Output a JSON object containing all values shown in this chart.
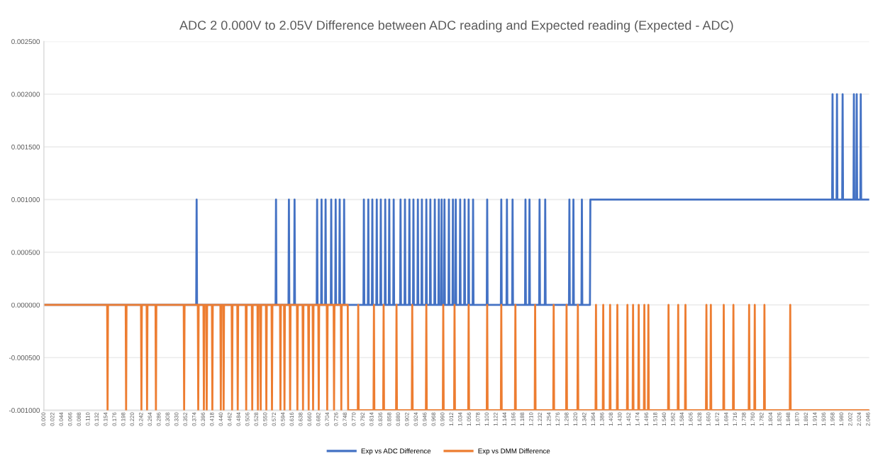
{
  "chart_data": {
    "type": "line",
    "title": "ADC 2 0.000V to 2.05V Difference between ADC reading and Expected reading (Expected - ADC)",
    "xlim": [
      0,
      2.048
    ],
    "xticks": [
      {
        "value": 0,
        "label": "0.000"
      },
      0.022,
      0.044,
      0.066,
      0.088,
      {
        "value": 0.11,
        "label": "0.110"
      },
      0.132,
      0.154,
      0.176,
      0.198,
      {
        "value": 0.22,
        "label": "0.220"
      },
      0.242,
      0.264,
      0.286,
      0.308,
      {
        "value": 0.33,
        "label": "0.330"
      },
      0.352,
      0.374,
      0.396,
      0.418,
      {
        "value": 0.44,
        "label": "0.440"
      },
      0.462,
      0.484,
      0.506,
      0.528,
      {
        "value": 0.55,
        "label": "0.550"
      },
      0.572,
      0.594,
      0.616,
      0.638,
      {
        "value": 0.66,
        "label": "0.660"
      },
      0.682,
      0.704,
      0.726,
      0.748,
      {
        "value": 0.77,
        "label": "0.770"
      },
      0.792,
      0.814,
      0.836,
      0.858,
      {
        "value": 0.88,
        "label": "0.880"
      },
      0.902,
      0.924,
      0.946,
      0.968,
      {
        "value": 0.99,
        "label": "0.990"
      },
      1.012,
      1.034,
      1.056,
      1.078,
      {
        "value": 1.1,
        "label": "1.100"
      },
      1.122,
      1.144,
      1.166,
      1.188,
      {
        "value": 1.21,
        "label": "1.210"
      },
      1.232,
      1.254,
      1.276,
      1.298,
      {
        "value": 1.32,
        "label": "1.320"
      },
      1.342,
      1.364,
      1.386,
      1.408,
      {
        "value": 1.43,
        "label": "1.430"
      },
      1.452,
      1.474,
      1.496,
      1.518,
      {
        "value": 1.54,
        "label": "1.540"
      },
      1.562,
      1.584,
      1.606,
      1.628,
      {
        "value": 1.65,
        "label": "1.650"
      },
      1.672,
      1.694,
      1.716,
      1.738,
      {
        "value": 1.76,
        "label": "1.760"
      },
      1.782,
      1.804,
      1.826,
      1.848,
      {
        "value": 1.87,
        "label": "1.870"
      },
      1.892,
      1.914,
      1.936,
      1.958,
      {
        "value": 1.98,
        "label": "1.980"
      },
      2.002,
      2.024,
      2.046
    ],
    "ylim": [
      -0.001,
      0.0025
    ],
    "yticks": [
      {
        "value": -0.001,
        "label": "-0.001000"
      },
      {
        "value": -0.0005,
        "label": "-0.000500"
      },
      {
        "value": 0,
        "label": "0.000000"
      },
      {
        "value": 0.0005,
        "label": "0.000500"
      },
      {
        "value": 0.001,
        "label": "0.001000"
      },
      {
        "value": 0.0015,
        "label": "0.001500"
      },
      {
        "value": 0.002,
        "label": "0.002000"
      },
      {
        "value": 0.0025,
        "label": "0.002500"
      }
    ],
    "grid": "y",
    "legend": "bottom",
    "series": [
      {
        "name": "Exp vs ADC Difference",
        "color": "#4472c4",
        "x": [
          0,
          0.378,
          0.379,
          0.38,
          0.575,
          0.576,
          0.577,
          0.607,
          0.608,
          0.609,
          0.621,
          0.622,
          0.623,
          0.677,
          0.678,
          0.679,
          0.688,
          0.689,
          0.69,
          0.698,
          0.699,
          0.7,
          0.712,
          0.713,
          0.714,
          0.723,
          0.724,
          0.725,
          0.733,
          0.734,
          0.735,
          0.744,
          0.745,
          0.746,
          0.793,
          0.794,
          0.795,
          0.804,
          0.805,
          0.806,
          0.814,
          0.815,
          0.816,
          0.825,
          0.826,
          0.827,
          0.835,
          0.836,
          0.837,
          0.846,
          0.847,
          0.848,
          0.856,
          0.857,
          0.858,
          0.867,
          0.868,
          0.869,
          0.884,
          0.885,
          0.886,
          0.895,
          0.896,
          0.897,
          0.906,
          0.907,
          0.908,
          0.916,
          0.917,
          0.918,
          0.927,
          0.928,
          0.929,
          0.937,
          0.938,
          0.939,
          0.948,
          0.949,
          0.95,
          0.958,
          0.959,
          0.96,
          0.969,
          0.97,
          0.971,
          0.979,
          0.98,
          0.981,
          0.986,
          0.987,
          0.988,
          0.993,
          0.994,
          0.995,
          1.004,
          1.005,
          1.006,
          1.014,
          1.015,
          1.016,
          1.021,
          1.022,
          1.023,
          1.032,
          1.033,
          1.034,
          1.043,
          1.044,
          1.045,
          1.053,
          1.054,
          1.055,
          1.064,
          1.065,
          1.066,
          1.099,
          1.1,
          1.101,
          1.134,
          1.135,
          1.136,
          1.148,
          1.149,
          1.15,
          1.162,
          1.163,
          1.164,
          1.194,
          1.195,
          1.196,
          1.204,
          1.205,
          1.206,
          1.229,
          1.23,
          1.231,
          1.243,
          1.244,
          1.245,
          1.303,
          1.304,
          1.305,
          1.313,
          1.314,
          1.315,
          1.334,
          1.335,
          1.336,
          1.355,
          1.356,
          1.956,
          1.957,
          1.958,
          1.967,
          1.968,
          1.969,
          1.981,
          1.982,
          1.983,
          2.009,
          2.01,
          2.011,
          2.016,
          2.017,
          2.018,
          2.026,
          2.027,
          2.028,
          2.048
        ],
        "values": [
          0,
          0,
          0.001,
          0,
          0,
          0.001,
          0,
          0,
          0.001,
          0,
          0,
          0.001,
          0,
          0,
          0.001,
          0,
          0,
          0.001,
          0,
          0,
          0.001,
          0,
          0,
          0.001,
          0,
          0,
          0.001,
          0,
          0,
          0.001,
          0,
          0,
          0.001,
          0,
          0,
          0.001,
          0,
          0,
          0.001,
          0,
          0,
          0.001,
          0,
          0,
          0.001,
          0,
          0,
          0.001,
          0,
          0,
          0.001,
          0,
          0,
          0.001,
          0,
          0,
          0.001,
          0,
          0,
          0.001,
          0,
          0,
          0.001,
          0,
          0,
          0.001,
          0,
          0,
          0.001,
          0,
          0,
          0.001,
          0,
          0,
          0.001,
          0,
          0,
          0.001,
          0,
          0,
          0.001,
          0,
          0,
          0.001,
          0,
          0,
          0.001,
          0,
          0,
          0.001,
          0,
          0,
          0.001,
          0,
          0,
          0.001,
          0,
          0,
          0.001,
          0,
          0,
          0.001,
          0,
          0,
          0.001,
          0,
          0,
          0.001,
          0,
          0,
          0.001,
          0,
          0,
          0.001,
          0,
          0,
          0.001,
          0,
          0,
          0.001,
          0,
          0,
          0.001,
          0,
          0,
          0.001,
          0,
          0,
          0.001,
          0,
          0,
          0.001,
          0,
          0,
          0.001,
          0,
          0,
          0.001,
          0,
          0,
          0.001,
          0,
          0,
          0.001,
          0,
          0,
          0.001,
          0,
          0,
          0.001,
          0.001,
          0.002,
          0.001,
          0.001,
          0.002,
          0.001,
          0.001,
          0.002,
          0.001,
          0.001,
          0.002,
          0.001,
          0.001,
          0.002,
          0.001,
          0.001,
          0.002,
          0.001,
          0.001
        ]
      },
      {
        "name": "Exp vs DMM Difference",
        "color": "#ed7d31",
        "x": [
          0,
          0.157,
          0.158,
          0.159,
          0.203,
          0.204,
          0.205,
          0.241,
          0.242,
          0.243,
          0.255,
          0.256,
          0.257,
          0.277,
          0.278,
          0.279,
          0.347,
          0.348,
          0.349,
          0.382,
          0.383,
          0.384,
          0.396,
          0.397,
          0.398,
          0.403,
          0.404,
          0.405,
          0.417,
          0.418,
          0.419,
          0.438,
          0.439,
          0.44,
          0.445,
          0.446,
          0.447,
          0.466,
          0.467,
          0.468,
          0.48,
          0.481,
          0.482,
          0.501,
          0.502,
          0.503,
          0.516,
          0.517,
          0.518,
          0.53,
          0.531,
          0.532,
          0.537,
          0.538,
          0.539,
          0.551,
          0.552,
          0.553,
          0.565,
          0.566,
          0.567,
          0.586,
          0.587,
          0.588,
          0.596,
          0.597,
          0.598,
          0.61,
          0.611,
          0.612,
          0.628,
          0.629,
          0.63,
          0.642,
          0.643,
          0.644,
          0.656,
          0.657,
          0.658,
          0.667,
          0.668,
          0.669,
          0.681,
          0.682,
          0.683,
          0.702,
          0.703,
          0.704,
          0.719,
          0.72,
          0.721,
          0.737,
          0.738,
          0.739,
          0.754,
          0.755,
          0.779,
          0.78,
          0.781,
          0.818,
          0.819,
          0.82,
          0.842,
          0.843,
          0.844,
          0.874,
          0.875,
          0.876,
          0.913,
          0.914,
          0.915,
          0.948,
          0.949,
          0.95,
          0.99,
          0.991,
          0.992,
          1.018,
          1.019,
          1.02,
          1.053,
          1.054,
          1.055,
          1.099,
          1.1,
          1.101,
          1.134,
          1.135,
          1.136,
          1.169,
          1.17,
          1.171,
          1.218,
          1.219,
          1.22,
          1.264,
          1.265,
          1.266,
          1.296,
          1.297,
          1.298,
          1.324,
          1.325,
          1.326,
          1.369,
          1.37,
          1.371,
          1.387,
          1.388,
          1.389,
          1.404,
          1.405,
          1.406,
          1.422,
          1.423,
          1.424,
          1.447,
          1.448,
          1.449,
          1.461,
          1.462,
          1.463,
          1.475,
          1.476,
          1.477,
          1.489,
          1.49,
          1.491,
          1.499,
          1.5,
          1.501,
          1.549,
          1.55,
          1.551,
          1.573,
          1.574,
          1.575,
          1.591,
          1.592,
          1.593,
          1.643,
          1.644,
          1.645,
          1.654,
          1.655,
          1.656,
          1.686,
          1.687,
          1.688,
          1.71,
          1.711,
          1.712,
          1.749,
          1.75,
          1.751,
          1.763,
          1.764,
          1.765,
          1.787,
          1.788,
          1.789,
          1.851,
          1.852,
          1.853,
          2.048
        ],
        "values": [
          0,
          0,
          -0.001,
          0,
          0,
          -0.001,
          0,
          0,
          -0.001,
          0,
          0,
          -0.001,
          0,
          0,
          -0.001,
          0,
          0,
          -0.001,
          0,
          0,
          -0.001,
          0,
          0,
          -0.001,
          0,
          0,
          -0.001,
          0,
          0,
          -0.001,
          0,
          0,
          -0.001,
          0,
          0,
          -0.001,
          0,
          0,
          -0.001,
          0,
          0,
          -0.001,
          0,
          0,
          -0.001,
          0,
          0,
          -0.001,
          0,
          0,
          -0.001,
          0,
          0,
          -0.001,
          0,
          0,
          -0.001,
          0,
          0,
          -0.001,
          0,
          0,
          -0.001,
          0,
          0,
          -0.001,
          0,
          0,
          -0.001,
          0,
          0,
          -0.001,
          0,
          0,
          -0.001,
          0,
          0,
          -0.001,
          0,
          0,
          -0.001,
          0,
          0,
          -0.001,
          0,
          0,
          -0.001,
          0,
          0,
          -0.001,
          0,
          0,
          -0.001,
          0,
          0,
          -0.001,
          -0.001,
          0,
          -0.001,
          -0.001,
          0,
          -0.001,
          -0.001,
          0,
          -0.001,
          -0.001,
          0,
          -0.001,
          -0.001,
          0,
          -0.001,
          -0.001,
          0,
          -0.001,
          -0.001,
          0,
          -0.001,
          -0.001,
          0,
          -0.001,
          -0.001,
          0,
          -0.001,
          -0.001,
          0,
          -0.001,
          -0.001,
          0,
          -0.001,
          -0.001,
          0,
          -0.001,
          -0.001,
          0,
          -0.001,
          -0.001,
          0,
          -0.001,
          -0.001,
          0,
          -0.001,
          -0.001,
          0,
          -0.001,
          -0.001,
          0,
          -0.001,
          -0.001,
          0,
          -0.001,
          -0.001,
          0,
          -0.001,
          -0.001,
          0,
          -0.001,
          -0.001,
          0,
          -0.001,
          -0.001,
          0,
          -0.001,
          -0.001,
          0,
          -0.001,
          -0.001,
          0,
          -0.001,
          -0.001,
          0,
          -0.001,
          -0.001,
          0,
          -0.001,
          -0.001,
          0,
          -0.001,
          -0.001,
          0,
          -0.001,
          -0.001,
          0,
          -0.001,
          -0.001,
          0,
          -0.001,
          -0.001,
          0,
          -0.001,
          -0.001,
          0,
          -0.001,
          -0.001,
          0,
          -0.001,
          -0.001,
          0,
          -0.001,
          -0.001,
          0,
          -0.001,
          -0.001,
          0,
          -0.001,
          -0.001
        ]
      }
    ]
  }
}
